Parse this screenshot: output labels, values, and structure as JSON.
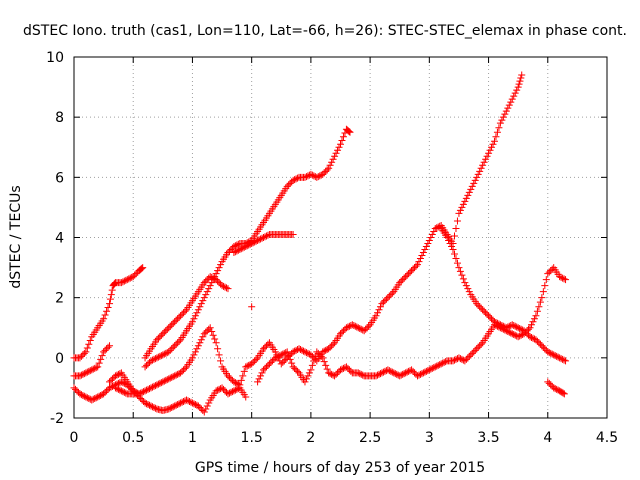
{
  "chart_data": {
    "type": "scatter",
    "title": "dSTEC Iono. truth (cas1, Lon=110, Lat=-66, h=26): STEC-STEC_elemax in phase cont.",
    "xlabel": "GPS time / hours of day 253 of year 2015",
    "ylabel": "dSTEC  / TECUs",
    "xlim": [
      0,
      4.5
    ],
    "ylim": [
      -2,
      10
    ],
    "xticks": [
      "0",
      "0.5",
      "1",
      "1.5",
      "2",
      "2.5",
      "3",
      "3.5",
      "4",
      "4.5"
    ],
    "yticks": [
      "-2",
      "0",
      "2",
      "4",
      "6",
      "8",
      "10"
    ],
    "grid": true,
    "marker": "+",
    "color": "#ff0000",
    "series": [
      {
        "x": [
          0.0,
          0.05,
          0.1,
          0.15,
          0.2,
          0.25,
          0.3,
          0.33,
          0.35,
          0.4,
          0.45,
          0.5,
          0.55,
          0.58,
          0.6,
          0.65,
          0.7,
          0.75,
          0.8,
          0.85,
          0.9,
          0.95,
          1.0,
          1.05,
          1.1,
          1.15,
          1.2,
          1.25,
          1.3,
          1.35,
          1.4,
          1.45,
          1.5,
          1.55,
          1.6,
          1.65,
          1.7,
          1.75,
          1.8,
          1.85,
          1.9,
          1.95,
          2.0,
          2.05,
          2.1,
          2.15,
          2.2,
          2.25,
          2.3,
          2.33
        ],
        "y": [
          0.0,
          0.0,
          0.2,
          0.7,
          1.0,
          1.3,
          1.8,
          2.4,
          2.5,
          2.5,
          2.6,
          2.7,
          2.9,
          3.0,
          -0.3,
          -0.1,
          0.0,
          0.1,
          0.2,
          0.4,
          0.6,
          0.9,
          1.2,
          1.6,
          2.0,
          2.4,
          2.8,
          3.2,
          3.5,
          3.7,
          3.8,
          3.8,
          3.9,
          4.2,
          4.5,
          4.8,
          5.1,
          5.4,
          5.7,
          5.9,
          6.0,
          6.0,
          6.1,
          6.0,
          6.1,
          6.3,
          6.7,
          7.1,
          7.6,
          7.5
        ]
      },
      {
        "x": [
          0.0,
          0.05,
          0.1,
          0.15,
          0.2,
          0.25,
          0.3,
          0.35,
          0.4,
          0.45,
          0.5,
          0.55,
          0.6,
          0.65,
          0.7,
          0.75,
          0.8,
          0.85,
          0.9,
          0.95,
          1.0,
          1.05,
          1.1,
          1.15,
          1.2,
          1.25,
          1.3,
          1.35,
          1.4,
          1.45,
          1.5,
          1.55,
          1.6,
          1.65,
          1.7,
          1.75,
          1.8,
          1.85
        ],
        "y": [
          -0.6,
          -0.6,
          -0.5,
          -0.4,
          -0.3,
          0.2,
          0.4,
          -1.0,
          -1.1,
          -1.2,
          -1.2,
          -1.2,
          0.0,
          0.3,
          0.6,
          0.8,
          1.0,
          1.2,
          1.4,
          1.6,
          1.9,
          2.2,
          2.5,
          2.7,
          2.6,
          2.4,
          2.3,
          3.5,
          3.6,
          3.7,
          3.8,
          3.9,
          4.0,
          4.1,
          4.1,
          4.1,
          4.1,
          4.1
        ]
      },
      {
        "x": [
          0.0,
          0.05,
          0.1,
          0.15,
          0.2,
          0.25,
          0.3,
          0.35,
          0.4,
          0.45,
          0.5,
          0.55,
          0.6,
          0.65,
          0.7,
          0.75,
          0.8,
          0.85,
          0.9,
          0.95,
          1.0,
          1.05,
          1.1,
          1.15,
          1.2,
          1.25,
          1.3,
          1.35,
          1.4,
          1.45,
          1.5,
          1.55,
          1.6,
          1.65,
          1.7,
          1.75,
          1.8,
          1.85,
          1.9,
          1.95,
          2.0,
          2.05,
          2.1,
          2.15,
          2.2,
          2.25,
          2.3,
          2.35,
          2.4,
          2.45,
          2.5,
          2.55,
          2.6,
          2.65,
          2.7,
          2.75,
          2.8,
          2.85,
          2.9,
          2.95,
          3.0,
          3.05,
          3.1,
          3.15,
          3.2,
          3.25,
          3.3,
          3.35,
          3.4,
          3.45,
          3.5,
          3.55,
          3.6,
          3.65,
          3.7,
          3.75,
          3.78
        ],
        "y": [
          -1.0,
          -1.2,
          -1.3,
          -1.4,
          -1.3,
          -1.2,
          -1.0,
          -0.9,
          -0.8,
          -0.9,
          -1.1,
          -1.2,
          -1.1,
          -1.0,
          -0.9,
          -0.8,
          -0.7,
          -0.6,
          -0.5,
          -0.3,
          0.0,
          0.4,
          0.8,
          1.0,
          0.5,
          -0.3,
          -0.6,
          -0.8,
          -0.9,
          -0.3,
          -0.2,
          0.0,
          0.3,
          0.5,
          0.2,
          -0.2,
          0.0,
          0.2,
          0.3,
          0.2,
          0.1,
          -0.1,
          0.2,
          0.3,
          0.5,
          0.8,
          1.0,
          1.1,
          1.0,
          0.9,
          1.1,
          1.4,
          1.8,
          2.0,
          2.2,
          2.5,
          2.7,
          2.9,
          3.1,
          3.5,
          3.9,
          4.3,
          4.4,
          4.1,
          3.8,
          4.8,
          5.2,
          5.6,
          6.0,
          6.4,
          6.8,
          7.2,
          7.8,
          8.2,
          8.6,
          9.0,
          9.4
        ]
      },
      {
        "x": [
          0.3,
          0.35,
          0.4,
          0.45,
          0.5,
          0.55,
          0.6,
          0.65,
          0.7,
          0.75,
          0.8,
          0.85,
          0.9,
          0.95,
          1.0,
          1.05,
          1.1,
          1.15,
          1.2,
          1.25,
          1.3,
          1.35,
          1.4,
          1.45,
          1.5,
          1.55,
          1.6,
          1.65,
          1.7,
          1.75,
          1.8,
          1.85,
          1.9,
          1.95,
          2.0,
          2.05,
          2.1,
          2.15,
          2.2,
          2.25,
          2.3,
          2.35,
          2.4,
          2.45,
          2.5,
          2.55,
          2.6,
          2.65,
          2.7,
          2.75,
          2.8,
          2.85,
          2.9,
          2.95,
          3.0,
          3.05,
          3.1,
          3.15,
          3.2,
          3.25,
          3.3,
          3.35,
          3.4,
          3.45,
          3.5,
          3.55,
          3.6,
          3.65,
          3.7,
          3.75,
          3.8,
          3.85,
          3.9,
          3.95,
          4.0,
          4.05,
          4.1,
          4.15
        ],
        "y": [
          -0.8,
          -0.6,
          -0.5,
          -0.8,
          -1.1,
          -1.3,
          -1.5,
          -1.6,
          -1.7,
          -1.75,
          -1.7,
          -1.6,
          -1.5,
          -1.4,
          -1.5,
          -1.6,
          -1.8,
          -1.4,
          -1.1,
          -1.0,
          -1.2,
          -1.1,
          -1.0,
          -1.3,
          1.7,
          -0.8,
          -0.4,
          -0.2,
          0.0,
          0.1,
          0.2,
          -0.3,
          -0.5,
          -0.8,
          -0.4,
          0.2,
          0.0,
          -0.5,
          -0.6,
          -0.4,
          -0.3,
          -0.5,
          -0.5,
          -0.6,
          -0.6,
          -0.6,
          -0.5,
          -0.4,
          -0.5,
          -0.6,
          -0.5,
          -0.4,
          -0.6,
          -0.5,
          -0.4,
          -0.3,
          -0.2,
          -0.1,
          -0.1,
          0.0,
          -0.1,
          0.1,
          0.3,
          0.5,
          0.8,
          1.1,
          1.0,
          0.9,
          0.8,
          0.7,
          0.8,
          1.0,
          1.4,
          2.0,
          2.8,
          3.0,
          2.7,
          2.6
        ]
      },
      {
        "x": [
          3.1,
          3.15,
          3.2,
          3.25,
          3.3,
          3.35,
          3.4,
          3.45,
          3.5,
          3.55,
          3.6,
          3.65,
          3.7,
          3.75,
          3.8,
          3.85,
          3.9,
          3.95,
          4.0,
          4.05,
          4.1,
          4.15,
          4.0,
          4.05,
          4.1,
          4.14
        ],
        "y": [
          4.3,
          4.0,
          3.6,
          3.0,
          2.5,
          2.1,
          1.8,
          1.6,
          1.4,
          1.2,
          1.1,
          1.0,
          1.1,
          1.0,
          0.9,
          0.7,
          0.6,
          0.4,
          0.2,
          0.1,
          0.0,
          -0.1,
          -0.8,
          -1.0,
          -1.1,
          -1.2
        ]
      }
    ]
  }
}
